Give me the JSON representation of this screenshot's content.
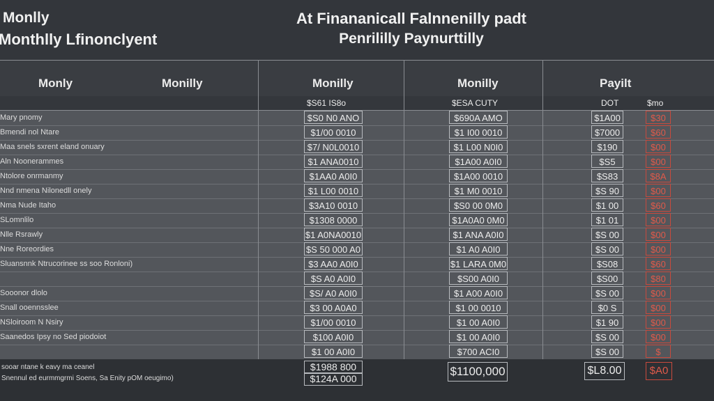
{
  "title": {
    "left_top": "Monlly",
    "left_bottom": "Monthlly Lfinonclyent",
    "center_top": "At Finananicall Falnnenilly padt",
    "center_bottom": "Penrililly Paynurttilly"
  },
  "columns": {
    "col1": "Monly",
    "col2": "Monilly",
    "col3": "Monilly",
    "col4": "Monilly",
    "col5": "Payilt"
  },
  "subheaders": {
    "s1": "$S61 IS8o",
    "s2": "$ESA CUTY",
    "s3": "DOT",
    "s4": "$mo"
  },
  "rows": [
    {
      "label": "Mary pnomy",
      "a": "$S0 N0 ANO",
      "b": "$690A AMO",
      "c": "$1A00",
      "d": "$30"
    },
    {
      "label": "Bmendi nol Ntare",
      "a": "$1/00 0010",
      "b": "$1 I00 0010",
      "c": "$7000",
      "d": "$60"
    },
    {
      "label": "Maa snels sxrent eland onuary",
      "a": "$7/ N0L0010",
      "b": "$1 L00 N0I0",
      "c": "$190",
      "d": "$00"
    },
    {
      "label": "Aln Noonerammes",
      "a": "$1 ANA0010",
      "b": "$1A00 A0I0",
      "c": "$S5",
      "d": "$00"
    },
    {
      "label": "Ntolore onrmanmy",
      "a": "$1AA0 A0I0",
      "b": "$1A00 0010",
      "c": "$S83",
      "d": "$8A"
    },
    {
      "label": "Nnd nmena Nilonedll onely",
      "a": "$1 L00 0010",
      "b": "$1 M0 0010",
      "c": "$S 90",
      "d": "$00"
    },
    {
      "label": "Nma Nude Itaho",
      "a": "$3A10 0010",
      "b": "$S0 00 0M0",
      "c": "$1 00",
      "d": "$60"
    },
    {
      "label": "SLomnlilo",
      "a": "$1308 0000",
      "b": "$1A0A0 0M0",
      "c": "$1 01",
      "d": "$00"
    },
    {
      "label": "Nlle Rsrawly",
      "a": "$1 A0NA0010",
      "b": "$1 ANA A0I0",
      "c": "$S 00",
      "d": "$00"
    },
    {
      "label": "Nne Roreordies",
      "a": "$S 50 000 A0",
      "b": "$1 A0 A0I0",
      "c": "$S 00",
      "d": "$00"
    },
    {
      "label": "Sluansnnk Ntrucorinee ss soo Ronloni)",
      "a": "$3 AA0 A0I0",
      "b": "$1 LARA 0M0",
      "c": "$S08",
      "d": "$60"
    },
    {
      "label": "",
      "a": "$S A0 A0I0",
      "b": "$S00 A0I0",
      "c": "$S00",
      "d": "$80"
    },
    {
      "label": "Sooonor dlolo",
      "a": "$S/ A0 A0I0",
      "b": "$1 A00 A0I0",
      "c": "$S 00",
      "d": "$00"
    },
    {
      "label": "Snall ooennsslee",
      "a": "$3 00 A0A0",
      "b": "$1 00 0010",
      "c": "$0 S",
      "d": "$00"
    },
    {
      "label": "NSloiroom N Nsiry",
      "a": "$1/00 0010",
      "b": "$1 00 A0I0",
      "c": "$1 90",
      "d": "$00"
    },
    {
      "label": "Saanedos Ipsy no Sed piodoiot",
      "a": "$100 A0I0",
      "b": "$1 00 A0I0",
      "c": "$S 00",
      "d": "$00"
    },
    {
      "label": "",
      "a": "$1 00 A0I0",
      "b": "$700 ACI0",
      "c": "$S 00",
      "d": "$"
    }
  ],
  "footer": {
    "label1": "sooar ntane k eavy ma ceanel",
    "label2": "Snennul ed eurmmgrmi Soens, Sa Enity pOM oeugimo)",
    "total_a1": "$1988 800",
    "total_a2": "$124A 000",
    "total_b": "$1100,000",
    "total_c": "$L8.00",
    "total_d": "$A0"
  }
}
